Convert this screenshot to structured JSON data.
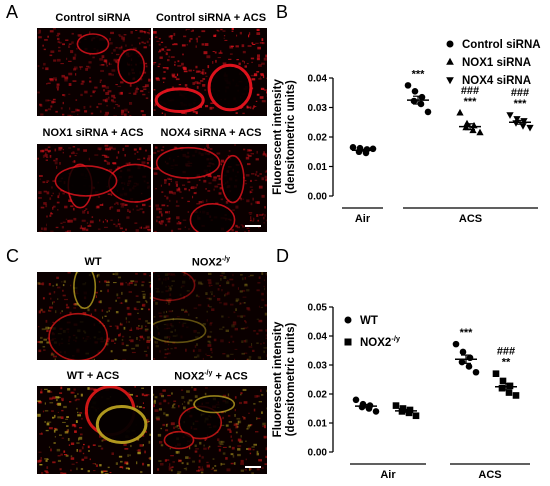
{
  "figure": {
    "panel_a_letter": "A",
    "panel_b_letter": "B",
    "panel_c_letter": "C",
    "panel_d_letter": "D"
  },
  "panel_a": {
    "labels": [
      "Control siRNA",
      "Control siRNA + ACS",
      "NOX1 siRNA + ACS",
      "NOX4 siRNA + ACS"
    ],
    "tint": "#e8141e"
  },
  "panel_c": {
    "labels": [
      "WT",
      "NOX2",
      "WT + ACS",
      "NOX2"
    ],
    "label_sup": "-/y",
    "label_suffix": " + ACS",
    "tint_red": "#d81818",
    "tint_yellow": "#b8a020"
  },
  "chart_data": [
    {
      "type": "scatter",
      "panel": "B",
      "ylabel": "Fluorescent intensity\n(densitometric units)",
      "ylim": [
        0.0,
        0.04
      ],
      "yticks": [
        "0.00",
        "0.01",
        "0.02",
        "0.03",
        "0.04"
      ],
      "groups": [
        "Air",
        "ACS"
      ],
      "legend": [
        "Control siRNA",
        "NOX1 siRNA",
        "NOX4 siRNA"
      ],
      "legend_position": "top-right",
      "series": [
        {
          "name": "Control siRNA",
          "group": "Air",
          "marker": "circle",
          "mean": 0.0155,
          "points": [
            0.0165,
            0.0162,
            0.0158,
            0.015,
            0.0146,
            0.016
          ]
        },
        {
          "name": "Control siRNA",
          "group": "ACS",
          "marker": "circle",
          "mean": 0.0325,
          "points": [
            0.0375,
            0.0355,
            0.0335,
            0.0322,
            0.0312,
            0.0285
          ],
          "annotation": [
            "***"
          ]
        },
        {
          "name": "NOX1 siRNA",
          "group": "ACS",
          "marker": "triangle-up",
          "mean": 0.0235,
          "points": [
            0.0282,
            0.0245,
            0.0238,
            0.0232,
            0.0222,
            0.0215
          ],
          "annotation": [
            "###",
            "***"
          ]
        },
        {
          "name": "NOX4 siRNA",
          "group": "ACS",
          "marker": "triangle-down",
          "mean": 0.025,
          "points": [
            0.0275,
            0.0262,
            0.0255,
            0.0248,
            0.0238,
            0.0232
          ],
          "annotation": [
            "###",
            "***"
          ]
        }
      ]
    },
    {
      "type": "scatter",
      "panel": "D",
      "ylabel": "Fluorescent intensity\n(densitometric units)",
      "ylim": [
        0.0,
        0.05
      ],
      "yticks": [
        "0.00",
        "0.01",
        "0.02",
        "0.03",
        "0.04",
        "0.05"
      ],
      "groups": [
        "Air",
        "ACS"
      ],
      "legend": [
        "WT",
        "NOX2"
      ],
      "legend_sup": [
        "",
        "-/y"
      ],
      "legend_position": "top-left",
      "series": [
        {
          "name": "WT",
          "group": "Air",
          "marker": "circle",
          "mean": 0.0158,
          "points": [
            0.018,
            0.0165,
            0.016,
            0.0155,
            0.015,
            0.014
          ]
        },
        {
          "name": "NOX2",
          "group": "Air",
          "marker": "square",
          "mean": 0.0142,
          "points": [
            0.016,
            0.015,
            0.0145,
            0.014,
            0.0135,
            0.0125
          ]
        },
        {
          "name": "WT",
          "group": "ACS",
          "marker": "circle",
          "mean": 0.032,
          "points": [
            0.0372,
            0.0345,
            0.0325,
            0.031,
            0.0295,
            0.0275
          ],
          "annotation": [
            "***"
          ]
        },
        {
          "name": "NOX2",
          "group": "ACS",
          "marker": "square",
          "mean": 0.0225,
          "points": [
            0.027,
            0.0245,
            0.0228,
            0.022,
            0.0205,
            0.0195
          ],
          "annotation": [
            "###",
            "**"
          ]
        }
      ]
    }
  ]
}
